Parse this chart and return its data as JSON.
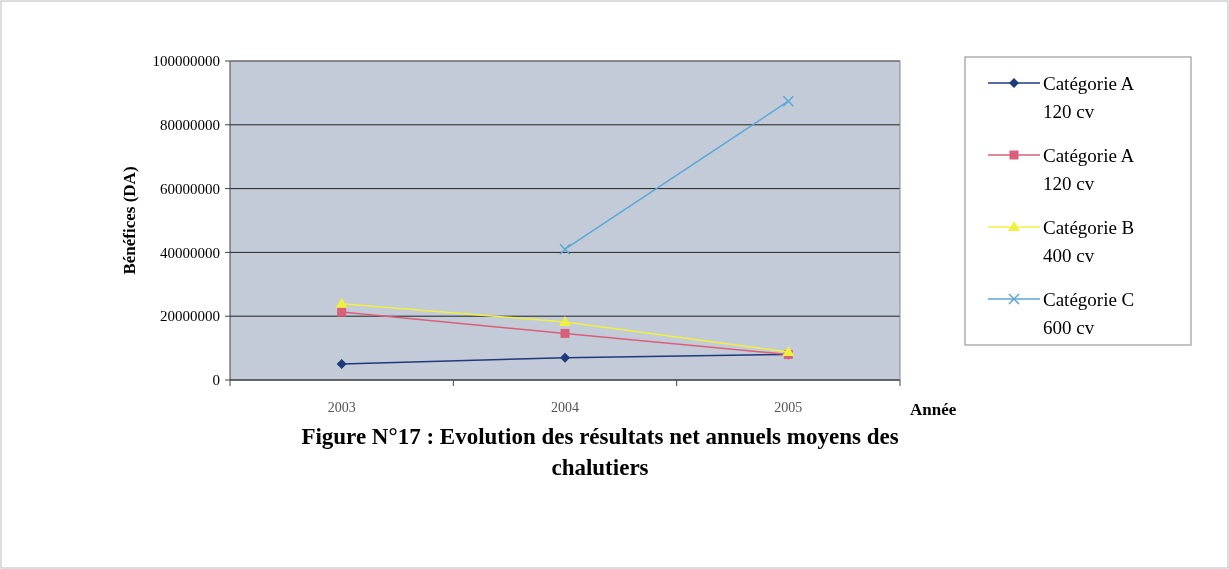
{
  "chart_data": {
    "type": "line",
    "title": "Figure N°17 : Evolution des résultats net annuels moyens des chalutiers",
    "xlabel": "Année",
    "ylabel": "Bénéfices (DA)",
    "categories": [
      "2003",
      "2004",
      "2005"
    ],
    "series": [
      {
        "name": "Catégorie A 120 cv",
        "color": "#1f3a7a",
        "marker": "diamond",
        "values": [
          5000000,
          7000000,
          8000000
        ]
      },
      {
        "name": "Catégorie A 120 cv",
        "color": "#d9607a",
        "marker": "square",
        "values": [
          21300000,
          14600000,
          8000000
        ]
      },
      {
        "name": "Catégorie B 400 cv",
        "color": "#f0f040",
        "marker": "triangle",
        "values": [
          23900000,
          18200000,
          8800000
        ]
      },
      {
        "name": "Catégorie C 600 cv",
        "color": "#5aa8d8",
        "marker": "cross",
        "values": [
          null,
          41000000,
          87400000
        ]
      }
    ],
    "ylim": [
      0,
      100000000
    ],
    "yticks": [
      0,
      20000000,
      40000000,
      60000000,
      80000000,
      100000000
    ],
    "grid": "y",
    "legend": "right",
    "line_style": "solid"
  }
}
